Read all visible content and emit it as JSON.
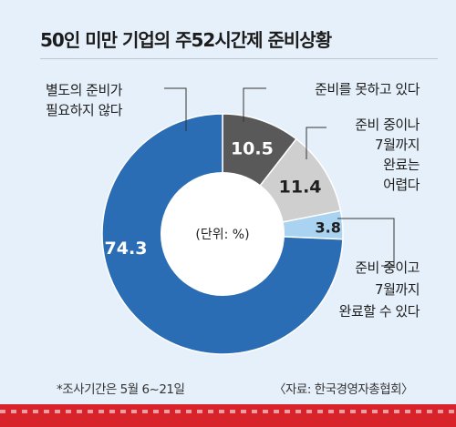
{
  "title": "50인 미만 기업의 주52시간제 준비상황",
  "chart_data": {
    "type": "pie",
    "unit_label": "(단위: %)",
    "slices": [
      {
        "value": "10.5",
        "label_lines": [
          "준비를 못하고 있다"
        ],
        "color": "#595959",
        "value_color": "#ffffff"
      },
      {
        "value": "11.4",
        "label_lines": [
          "준비 중이나",
          "7월까지",
          "완료는",
          "어렵다"
        ],
        "color": "#cfcfcf",
        "value_color": "#1e1e1e"
      },
      {
        "value": "3.8",
        "label_lines": [
          "준비 중이고",
          "7월까지",
          "완료할 수 있다"
        ],
        "color": "#a9d3f0",
        "value_color": "#1e1e1e"
      },
      {
        "value": "74.3",
        "label_lines": [
          "별도의 준비가",
          "필요하지 않다"
        ],
        "color": "#2b6db4",
        "value_color": "#ffffff"
      }
    ]
  },
  "footnote": "*조사기간은 5월 6~21일",
  "source": "〈자료: 한국경영자총협회〉"
}
